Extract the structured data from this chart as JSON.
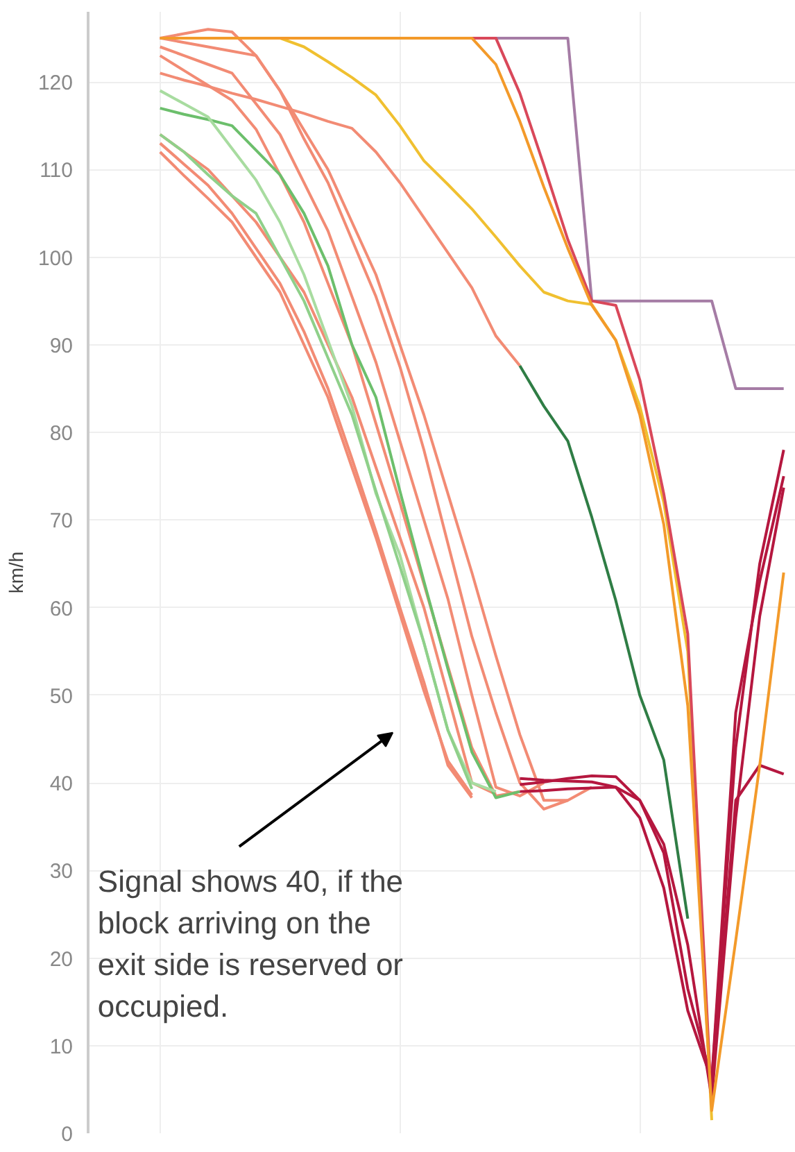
{
  "chart_data": {
    "type": "line",
    "ylabel": "km/h",
    "categories": [
      null,
      null,
      null,
      null,
      null,
      null,
      null,
      null,
      null,
      null,
      null,
      null,
      null,
      null,
      null,
      null,
      null,
      null,
      null,
      null,
      null,
      null,
      null,
      null,
      null,
      null,
      null
    ],
    "ylim": [
      0,
      128
    ],
    "yticks": [
      0,
      10,
      20,
      30,
      40,
      50,
      60,
      70,
      80,
      90,
      100,
      110,
      120
    ],
    "tick_labels": "y",
    "grid": true,
    "marker": "none",
    "line_style": "solid",
    "annotations": [
      "Signal shows 40, if the block arriving on the exit side is reserved or occupied."
    ],
    "series": [
      {
        "color": "#f28b74",
        "values": [
          125,
          125.5,
          126,
          125.7,
          123,
          119,
          114.5,
          110,
          104,
          98,
          90,
          82,
          73,
          64,
          54.5,
          45.5,
          38,
          38,
          39.5,
          null,
          null,
          null,
          null,
          null,
          null,
          null,
          null
        ]
      },
      {
        "color": "#f28b74",
        "values": [
          124,
          123,
          122,
          121,
          117.5,
          114,
          108.5,
          103,
          95.5,
          88,
          79,
          70,
          61,
          50,
          39.5,
          38.5,
          40,
          null,
          null,
          null,
          null,
          null,
          null,
          null,
          null,
          null,
          null
        ]
      },
      {
        "color": "#f28b74",
        "values": [
          123,
          121.3,
          119.6,
          117.9,
          114.6,
          109.4,
          104,
          97,
          90,
          81,
          72,
          62.7,
          53.3,
          44,
          38.5,
          39,
          null,
          null,
          null,
          null,
          null,
          null,
          null,
          null,
          null,
          null,
          null
        ]
      },
      {
        "color": "#f28b74",
        "values": [
          121,
          120.2,
          119.5,
          118.7,
          118,
          117.2,
          116.4,
          115.5,
          114.7,
          112,
          108.5,
          104.5,
          100.5,
          96.5,
          91,
          87.6,
          null,
          null,
          null,
          null,
          null,
          null,
          null,
          null,
          null,
          null,
          null
        ]
      },
      {
        "color": "#f28b74",
        "values": [
          114,
          112,
          110,
          107,
          104,
          100,
          96,
          90,
          84,
          76,
          68,
          60,
          50,
          40,
          38.7,
          null,
          null,
          null,
          null,
          null,
          null,
          null,
          null,
          null,
          null,
          null,
          null
        ]
      },
      {
        "color": "#f28b74",
        "values": [
          113,
          110.6,
          108.2,
          105,
          101,
          97,
          91.5,
          85,
          77,
          68.7,
          60,
          51.5,
          42,
          38.3,
          null,
          null,
          null,
          null,
          null,
          null,
          null,
          null,
          null,
          null,
          null,
          null,
          null
        ]
      },
      {
        "color": "#f28b74",
        "values": [
          112,
          109.3,
          106.7,
          104,
          100,
          96,
          90,
          84,
          76,
          68,
          59.3,
          50.5,
          42.5,
          38.6,
          null,
          null,
          null,
          null,
          null,
          null,
          null,
          null,
          null,
          null,
          null,
          null,
          null
        ]
      },
      {
        "color": "#f28b74",
        "values": [
          125,
          124.5,
          124,
          123.5,
          123,
          119,
          113.5,
          108.5,
          102,
          95.5,
          87.5,
          78,
          67.3,
          56.7,
          48,
          40,
          37,
          38,
          null,
          null,
          null,
          null,
          null,
          null,
          null,
          null,
          null
        ]
      },
      {
        "color": "#6cbf6c",
        "values": [
          117,
          116.3,
          115.7,
          115,
          112.2,
          109.4,
          105,
          99,
          90,
          84,
          73.3,
          63,
          53,
          43.5,
          38.3,
          39,
          null,
          null,
          null,
          null,
          null,
          null,
          null,
          null,
          null,
          null,
          null
        ]
      },
      {
        "color": "#a8dca0",
        "values": [
          119,
          117.5,
          116,
          112.4,
          108.8,
          104,
          98,
          90.5,
          83,
          73,
          66,
          56,
          46,
          40,
          39,
          null,
          null,
          null,
          null,
          null,
          null,
          null,
          null,
          null,
          null,
          null,
          null
        ]
      },
      {
        "color": "#8fd08a",
        "values": [
          114,
          112,
          109.4,
          107,
          105,
          100,
          95,
          88.5,
          82,
          73.3,
          64.7,
          56,
          46,
          39.3,
          null,
          null,
          null,
          null,
          null,
          null,
          null,
          null,
          null,
          null,
          null,
          null,
          null
        ]
      },
      {
        "color": "#2f7d45",
        "values": [
          null,
          null,
          null,
          null,
          null,
          null,
          null,
          null,
          null,
          null,
          null,
          null,
          null,
          null,
          null,
          87.6,
          83,
          79,
          70.3,
          60.8,
          50,
          42.6,
          24.5,
          null,
          null,
          null,
          null
        ]
      },
      {
        "color": "#a57ca5",
        "values": [
          null,
          null,
          null,
          null,
          null,
          null,
          null,
          null,
          null,
          null,
          null,
          null,
          null,
          null,
          125,
          125,
          125,
          125,
          95,
          95,
          95,
          95,
          95,
          95,
          85,
          85,
          85
        ]
      },
      {
        "color": "#f0c030",
        "values": [
          125,
          125,
          125,
          125,
          125,
          125,
          124,
          122.3,
          120.5,
          118.5,
          115,
          111,
          108.3,
          105.5,
          102.3,
          99,
          96,
          95,
          94.6,
          90.5,
          83,
          72,
          55,
          1.5,
          null,
          null,
          null
        ]
      },
      {
        "color": "#d9485a",
        "values": [
          125,
          125,
          125,
          125,
          125,
          125,
          125,
          125,
          125,
          125,
          125,
          125,
          125,
          125,
          125,
          118.7,
          110.5,
          102,
          95,
          94.5,
          86,
          73,
          57,
          3,
          null,
          null,
          null
        ]
      },
      {
        "color": "#b5173f",
        "values": [
          null,
          null,
          null,
          null,
          null,
          null,
          null,
          null,
          null,
          null,
          null,
          null,
          null,
          null,
          null,
          39.8,
          40.1,
          40.5,
          40.8,
          40.7,
          38,
          32,
          16.5,
          6,
          44,
          65,
          78
        ]
      },
      {
        "color": "#b5173f",
        "values": [
          null,
          null,
          null,
          null,
          null,
          null,
          null,
          null,
          null,
          null,
          null,
          null,
          null,
          null,
          null,
          40.5,
          40.3,
          40.2,
          40.1,
          39.5,
          38,
          33,
          21.5,
          4,
          36,
          59,
          73.7
        ]
      },
      {
        "color": "#b5173f",
        "values": [
          null,
          null,
          null,
          null,
          null,
          null,
          null,
          null,
          null,
          null,
          null,
          null,
          null,
          null,
          null,
          39,
          39.1,
          39.3,
          39.4,
          39.5,
          36,
          28,
          14,
          6,
          48,
          63,
          75
        ]
      },
      {
        "color": "#b5173f",
        "values": [
          null,
          null,
          null,
          null,
          null,
          null,
          null,
          null,
          null,
          null,
          null,
          null,
          null,
          null,
          null,
          null,
          null,
          null,
          null,
          null,
          null,
          null,
          null,
          5,
          38,
          42,
          41
        ]
      },
      {
        "color": "#f39a2a",
        "values": [
          125,
          125,
          125,
          125,
          125,
          125,
          125,
          125,
          125,
          125,
          125,
          125,
          125,
          125,
          122,
          115.5,
          108,
          101,
          94.5,
          90.5,
          82,
          69.5,
          48.8,
          2.6,
          22,
          42,
          64
        ]
      }
    ]
  }
}
